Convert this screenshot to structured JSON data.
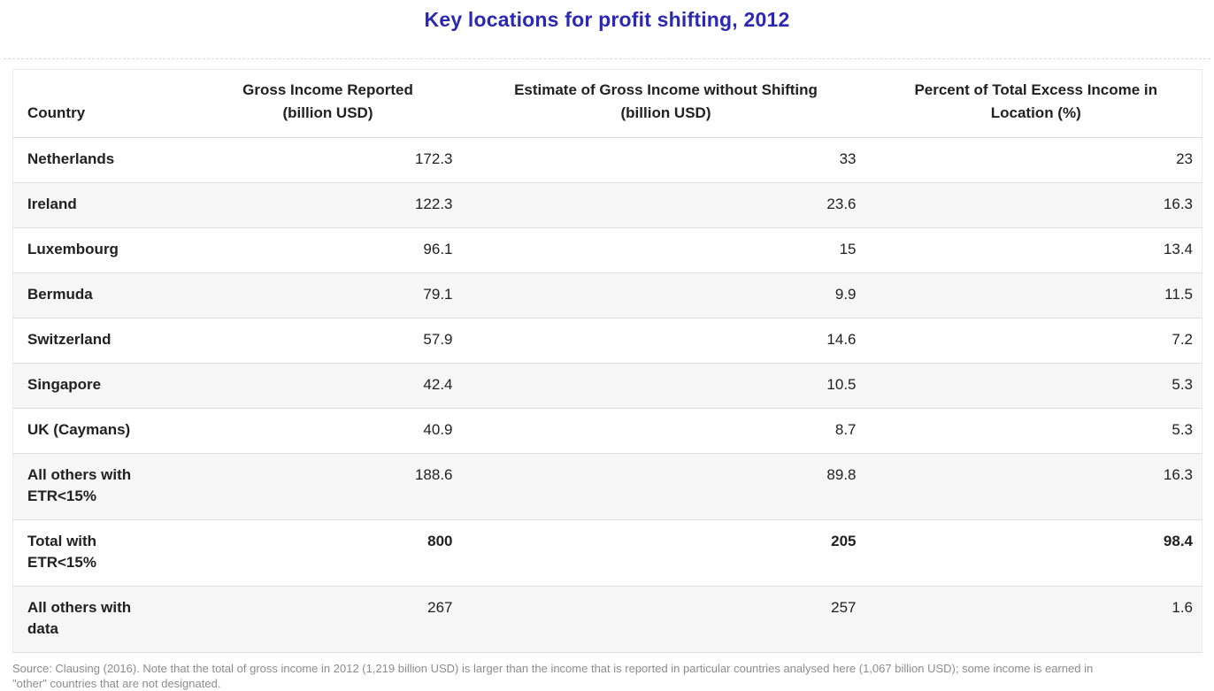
{
  "title": "Key locations for profit shifting, 2012",
  "source_note": "Source: Clausing (2016). Note that the total of gross income in 2012 (1,219 billion USD) is larger than the income that is reported in particular countries analysed here (1,067 billion USD); some income is earned in\n\"other\" countries that are not designated.",
  "colors": {
    "title": "#2b28b5",
    "header_text": "#212121",
    "body_text": "#212121",
    "row_stripe": "#f6f6f6",
    "row_border": "#e0e0e0",
    "source_text": "#8c8c8c"
  },
  "chart_data": {
    "type": "table",
    "title": "Key locations for profit shifting, 2012",
    "columns": [
      {
        "label": "Country",
        "lines": [
          "Country"
        ]
      },
      {
        "label": "Gross Income Reported (billion USD)",
        "lines": [
          "Gross Income Reported",
          "(billion USD)"
        ]
      },
      {
        "label": "Estimate of Gross Income without Shifting (billion USD)",
        "lines": [
          "Estimate of Gross Income without Shifting",
          "(billion USD)"
        ]
      },
      {
        "label": "Percent of Total Excess Income in Location (%)",
        "lines": [
          "Percent of Total Excess Income in",
          "Location (%)"
        ]
      }
    ],
    "rows": [
      {
        "country": "Netherlands",
        "values": [
          "172.3",
          "33",
          "23"
        ],
        "bold_values": false
      },
      {
        "country": "Ireland",
        "values": [
          "122.3",
          "23.6",
          "16.3"
        ],
        "bold_values": false
      },
      {
        "country": "Luxembourg",
        "values": [
          "96.1",
          "15",
          "13.4"
        ],
        "bold_values": false
      },
      {
        "country": "Bermuda",
        "values": [
          "79.1",
          "9.9",
          "11.5"
        ],
        "bold_values": false
      },
      {
        "country": "Switzerland",
        "values": [
          "57.9",
          "14.6",
          "7.2"
        ],
        "bold_values": false
      },
      {
        "country": "Singapore",
        "values": [
          "42.4",
          "10.5",
          "5.3"
        ],
        "bold_values": false
      },
      {
        "country": "UK (Caymans)",
        "values": [
          "40.9",
          "8.7",
          "5.3"
        ],
        "bold_values": false
      },
      {
        "country": "All others with\nETR<15%",
        "values": [
          "188.6",
          "89.8",
          "16.3"
        ],
        "bold_values": false
      },
      {
        "country": "Total with\nETR<15%",
        "values": [
          "800",
          "205",
          "98.4"
        ],
        "bold_values": true
      },
      {
        "country": "All others with\ndata",
        "values": [
          "267",
          "257",
          "1.6"
        ],
        "bold_values": false
      }
    ]
  }
}
